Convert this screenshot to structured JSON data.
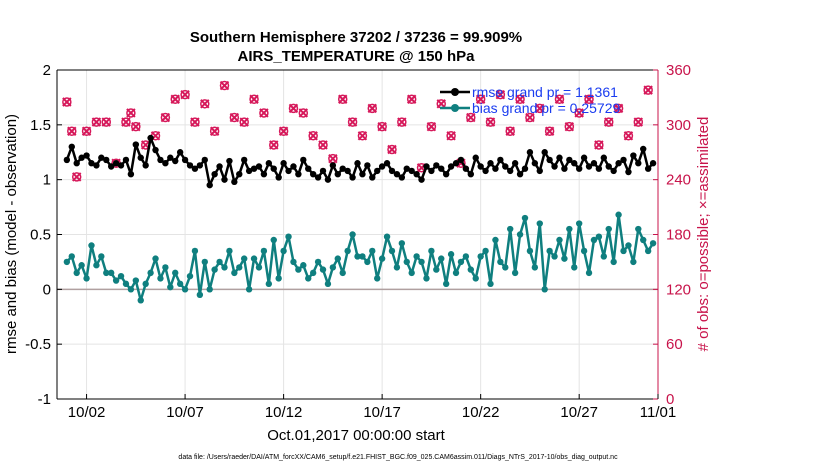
{
  "chart_data": {
    "type": "line",
    "title_line1": "Southern Hemisphere 37202 / 37236 = 99.909%",
    "title_line2": "AIRS_TEMPERATURE @ 150 hPa",
    "xlabel": "Oct.01,2017 00:00:00 start",
    "ylabel_left": "rmse and bias (model - observation)",
    "ylabel_right": "# of obs: o=possible; ×=assimilated",
    "ylim_left": [
      -1,
      2
    ],
    "ylim_right": [
      0,
      360
    ],
    "xlim": [
      0.5,
      31
    ],
    "xticks": [
      2,
      7,
      12,
      17,
      22,
      27,
      32
    ],
    "xtick_labels": [
      "10/02",
      "10/07",
      "10/12",
      "10/17",
      "10/22",
      "10/27",
      "11/01"
    ],
    "yticks_left": [
      -1,
      -0.5,
      0,
      0.5,
      1,
      1.5,
      2
    ],
    "ytick_labels_left": [
      "-1",
      "-0.5",
      "0",
      "0.5",
      "1",
      "1.5",
      "2"
    ],
    "yticks_right": [
      0,
      60,
      120,
      180,
      240,
      300,
      360
    ],
    "ytick_labels_right": [
      "0",
      "60",
      "120",
      "180",
      "240",
      "300",
      "360"
    ],
    "grid": true,
    "legend_position": "top-right",
    "footnote": "data file: /Users/raeder/DAI/ATM_forcXX/CAM6_setup/f.e21.FHIST_BGC.f09_025.CAM6assim.011/Diags_NTrS_2017-10/obs_diag_output.nc",
    "colors": {
      "rmse": "#000000",
      "bias": "#0f7f7f",
      "obs": "#d6185a",
      "legend_text": "#1a3cf0",
      "right_axis": "#c8144b",
      "zero_line": "#b0a0a0"
    },
    "series": [
      {
        "name": "rmse grand pr = 1.1361",
        "axis": "left",
        "x": [
          1.0,
          1.25,
          1.5,
          1.75,
          2.0,
          2.25,
          2.5,
          2.75,
          3.0,
          3.25,
          3.5,
          3.75,
          4.0,
          4.25,
          4.5,
          4.75,
          5.0,
          5.25,
          5.5,
          5.75,
          6.0,
          6.25,
          6.5,
          6.75,
          7.0,
          7.25,
          7.5,
          7.75,
          8.0,
          8.25,
          8.5,
          8.75,
          9.0,
          9.25,
          9.5,
          9.75,
          10.0,
          10.25,
          10.5,
          10.75,
          11.0,
          11.25,
          11.5,
          11.75,
          12.0,
          12.25,
          12.5,
          12.75,
          13.0,
          13.25,
          13.5,
          13.75,
          14.0,
          14.25,
          14.5,
          14.75,
          15.0,
          15.25,
          15.5,
          15.75,
          16.0,
          16.25,
          16.5,
          16.75,
          17.0,
          17.25,
          17.5,
          17.75,
          18.0,
          18.25,
          18.5,
          18.75,
          19.0,
          19.25,
          19.5,
          19.75,
          20.0,
          20.25,
          20.5,
          20.75,
          21.0,
          21.25,
          21.5,
          21.75,
          22.0,
          22.25,
          22.5,
          22.75,
          23.0,
          23.25,
          23.5,
          23.75,
          24.0,
          24.25,
          24.5,
          24.75,
          25.0,
          25.25,
          25.5,
          25.75,
          26.0,
          26.25,
          26.5,
          26.75,
          27.0,
          27.25,
          27.5,
          27.75,
          28.0,
          28.25,
          28.5,
          28.75,
          29.0,
          29.25,
          29.5,
          29.75,
          30.0,
          30.25,
          30.5,
          30.75
        ],
        "values": [
          1.18,
          1.3,
          1.15,
          1.2,
          1.22,
          1.15,
          1.13,
          1.2,
          1.18,
          1.12,
          1.15,
          1.13,
          1.18,
          1.05,
          1.32,
          1.2,
          1.13,
          1.38,
          1.27,
          1.18,
          1.15,
          1.2,
          1.17,
          1.25,
          1.18,
          1.13,
          1.1,
          1.13,
          1.18,
          0.95,
          1.05,
          1.12,
          1.0,
          1.17,
          0.98,
          1.05,
          1.18,
          1.08,
          1.1,
          1.12,
          1.05,
          1.15,
          1.1,
          1.02,
          1.15,
          1.08,
          1.12,
          1.05,
          1.18,
          1.1,
          1.05,
          1.02,
          1.08,
          1.0,
          1.13,
          1.05,
          1.1,
          1.08,
          1.02,
          1.15,
          1.05,
          1.13,
          1.02,
          1.08,
          1.12,
          1.15,
          1.08,
          1.05,
          1.02,
          1.1,
          1.08,
          1.05,
          1.0,
          1.12,
          1.08,
          1.13,
          1.1,
          1.05,
          1.12,
          1.15,
          1.18,
          1.1,
          1.05,
          1.2,
          1.12,
          1.08,
          1.15,
          1.1,
          1.18,
          1.12,
          1.08,
          1.15,
          1.05,
          1.1,
          1.25,
          1.15,
          1.08,
          1.25,
          1.18,
          1.12,
          1.2,
          1.1,
          1.18,
          1.15,
          1.1,
          1.2,
          1.12,
          1.15,
          1.1,
          1.2,
          1.12,
          1.08,
          1.15,
          1.18,
          1.07,
          1.22,
          1.15,
          1.28,
          1.1,
          1.15
        ]
      },
      {
        "name": "bias grand pr = 0.25729",
        "axis": "left",
        "x": [
          1.0,
          1.25,
          1.5,
          1.75,
          2.0,
          2.25,
          2.5,
          2.75,
          3.0,
          3.25,
          3.5,
          3.75,
          4.0,
          4.25,
          4.5,
          4.75,
          5.0,
          5.25,
          5.5,
          5.75,
          6.0,
          6.25,
          6.5,
          6.75,
          7.0,
          7.25,
          7.5,
          7.75,
          8.0,
          8.25,
          8.5,
          8.75,
          9.0,
          9.25,
          9.5,
          9.75,
          10.0,
          10.25,
          10.5,
          10.75,
          11.0,
          11.25,
          11.5,
          11.75,
          12.0,
          12.25,
          12.5,
          12.75,
          13.0,
          13.25,
          13.5,
          13.75,
          14.0,
          14.25,
          14.5,
          14.75,
          15.0,
          15.25,
          15.5,
          15.75,
          16.0,
          16.25,
          16.5,
          16.75,
          17.0,
          17.25,
          17.5,
          17.75,
          18.0,
          18.25,
          18.5,
          18.75,
          19.0,
          19.25,
          19.5,
          19.75,
          20.0,
          20.25,
          20.5,
          20.75,
          21.0,
          21.25,
          21.5,
          21.75,
          22.0,
          22.25,
          22.5,
          22.75,
          23.0,
          23.25,
          23.5,
          23.75,
          24.0,
          24.25,
          24.5,
          24.75,
          25.0,
          25.25,
          25.5,
          25.75,
          26.0,
          26.25,
          26.5,
          26.75,
          27.0,
          27.25,
          27.5,
          27.75,
          28.0,
          28.25,
          28.5,
          28.75,
          29.0,
          29.25,
          29.5,
          29.75,
          30.0,
          30.25,
          30.5,
          30.75
        ],
        "values": [
          0.25,
          0.3,
          0.15,
          0.22,
          0.1,
          0.4,
          0.22,
          0.3,
          0.15,
          0.15,
          0.08,
          0.12,
          0.05,
          0.0,
          0.08,
          -0.1,
          0.05,
          0.15,
          0.28,
          0.1,
          0.2,
          0.02,
          0.15,
          0.05,
          0.0,
          0.12,
          0.35,
          -0.05,
          0.25,
          0.0,
          0.18,
          0.25,
          0.2,
          0.35,
          0.15,
          0.2,
          0.28,
          0.0,
          0.28,
          0.2,
          0.35,
          0.05,
          0.45,
          0.1,
          0.35,
          0.48,
          0.25,
          0.18,
          0.22,
          0.1,
          0.15,
          0.25,
          0.18,
          0.05,
          0.2,
          0.28,
          0.15,
          0.35,
          0.5,
          0.3,
          0.3,
          0.25,
          0.35,
          0.1,
          0.28,
          0.48,
          0.35,
          0.2,
          0.42,
          0.25,
          0.15,
          0.3,
          0.25,
          0.1,
          0.35,
          0.18,
          0.28,
          0.05,
          0.32,
          0.15,
          0.25,
          0.3,
          0.18,
          0.1,
          0.3,
          0.35,
          0.05,
          0.45,
          0.25,
          0.2,
          0.55,
          0.15,
          0.5,
          0.65,
          0.35,
          0.2,
          0.6,
          0.0,
          0.35,
          0.3,
          0.45,
          0.28,
          0.55,
          0.2,
          0.6,
          0.35,
          0.15,
          0.45,
          0.48,
          0.3,
          0.55,
          0.25,
          0.68,
          0.35,
          0.4,
          0.25,
          0.55,
          0.45,
          0.35,
          0.42
        ]
      },
      {
        "name": "obs possible",
        "axis": "right",
        "x": [
          1.0,
          1.25,
          1.5,
          2.0,
          2.5,
          3.0,
          3.5,
          4.0,
          4.25,
          4.5,
          5.0,
          5.5,
          6.0,
          6.5,
          7.0,
          7.5,
          8.0,
          8.5,
          9.0,
          9.5,
          10.0,
          10.5,
          11.0,
          11.5,
          12.0,
          12.5,
          13.0,
          13.5,
          14.0,
          14.5,
          15.0,
          15.5,
          16.0,
          16.5,
          17.0,
          17.5,
          18.0,
          18.5,
          19.0,
          19.5,
          20.0,
          20.5,
          21.0,
          21.5,
          22.0,
          22.5,
          23.0,
          23.5,
          24.0,
          24.5,
          25.0,
          25.5,
          26.0,
          26.5,
          27.0,
          27.5,
          28.0,
          28.5,
          29.0,
          29.5,
          30.0,
          30.5
        ],
        "values": [
          325,
          293,
          243,
          293,
          303,
          303,
          258,
          303,
          313,
          298,
          278,
          288,
          308,
          328,
          333,
          303,
          323,
          293,
          343,
          308,
          303,
          328,
          313,
          278,
          293,
          318,
          313,
          288,
          278,
          263,
          328,
          303,
          288,
          318,
          298,
          273,
          303,
          328,
          253,
          298,
          323,
          288,
          258,
          308,
          328,
          303,
          333,
          293,
          328,
          308,
          318,
          293,
          328,
          298,
          313,
          328,
          278,
          303,
          318,
          288,
          303,
          338
        ]
      },
      {
        "name": "obs assimilated",
        "axis": "right",
        "x": [
          1.0,
          1.25,
          1.5,
          2.0,
          2.5,
          3.0,
          3.5,
          4.0,
          4.25,
          4.5,
          5.0,
          5.5,
          6.0,
          6.5,
          7.0,
          7.5,
          8.0,
          8.5,
          9.0,
          9.5,
          10.0,
          10.5,
          11.0,
          11.5,
          12.0,
          12.5,
          13.0,
          13.5,
          14.0,
          14.5,
          15.0,
          15.5,
          16.0,
          16.5,
          17.0,
          17.5,
          18.0,
          18.5,
          19.0,
          19.5,
          20.0,
          20.5,
          21.0,
          21.5,
          22.0,
          22.5,
          23.0,
          23.5,
          24.0,
          24.5,
          25.0,
          25.5,
          26.0,
          26.5,
          27.0,
          27.5,
          28.0,
          28.5,
          29.0,
          29.5,
          30.0,
          30.5
        ],
        "values": [
          325,
          293,
          243,
          293,
          303,
          303,
          258,
          303,
          313,
          298,
          278,
          288,
          308,
          328,
          333,
          303,
          323,
          293,
          343,
          308,
          303,
          328,
          313,
          278,
          293,
          318,
          313,
          288,
          278,
          263,
          328,
          303,
          288,
          318,
          298,
          273,
          303,
          328,
          253,
          298,
          323,
          288,
          258,
          308,
          328,
          303,
          333,
          293,
          328,
          308,
          318,
          293,
          328,
          298,
          313,
          328,
          278,
          303,
          318,
          288,
          303,
          338
        ]
      }
    ]
  }
}
